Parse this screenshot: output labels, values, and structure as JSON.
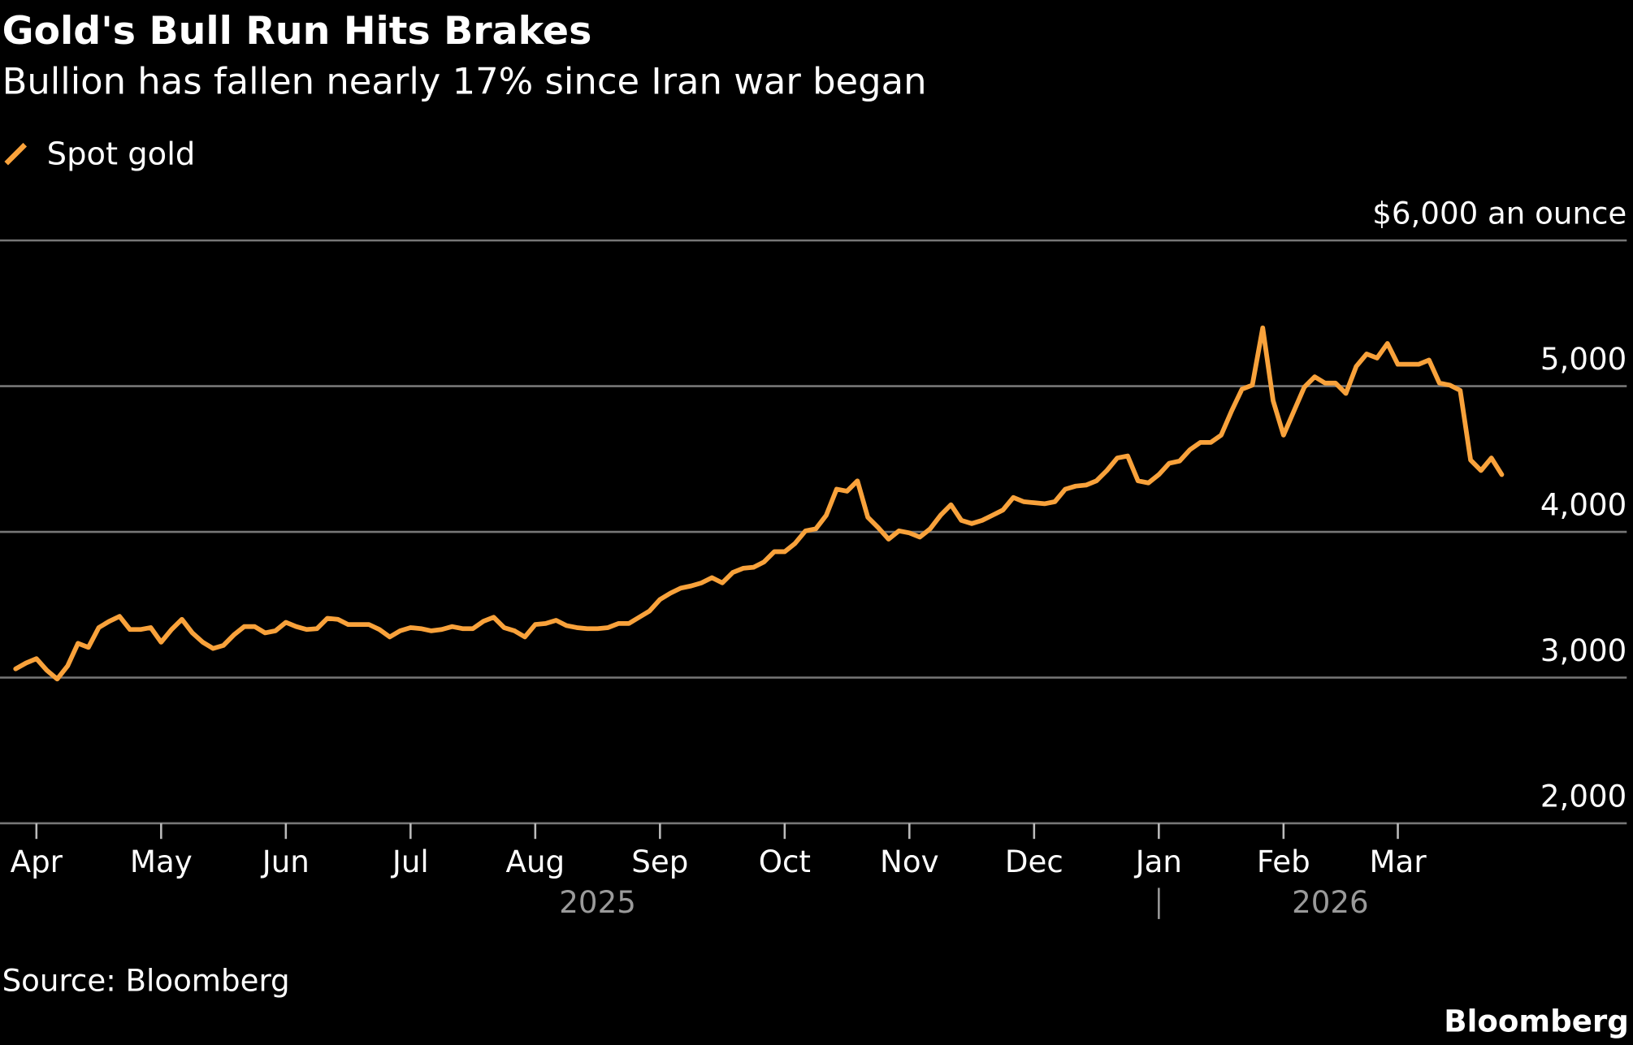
{
  "chart_data": {
    "type": "line",
    "title": "Gold's Bull Run Hits Brakes",
    "subtitle": "Bullion has fallen nearly 17% since Iran war began",
    "source": "Source: Bloomberg",
    "brand": "Bloomberg",
    "categories": [
      null,
      null,
      "Apr",
      null,
      null,
      null,
      null,
      null,
      null,
      null,
      null,
      null,
      null,
      null,
      "May",
      null,
      null,
      null,
      null,
      null,
      null,
      null,
      null,
      null,
      null,
      null,
      "Jun",
      null,
      null,
      null,
      null,
      null,
      null,
      null,
      null,
      null,
      null,
      null,
      "Jul",
      null,
      null,
      null,
      null,
      null,
      null,
      null,
      null,
      null,
      null,
      null,
      "Aug",
      null,
      null,
      null,
      null,
      null,
      null,
      null,
      null,
      null,
      null,
      null,
      "Sep",
      null,
      null,
      null,
      null,
      null,
      null,
      null,
      null,
      null,
      null,
      null,
      "Oct",
      null,
      null,
      null,
      null,
      null,
      null,
      null,
      null,
      null,
      null,
      null,
      "Nov",
      null,
      null,
      null,
      null,
      null,
      null,
      null,
      null,
      null,
      null,
      null,
      "Dec",
      null,
      null,
      null,
      null,
      null,
      null,
      null,
      null,
      null,
      null,
      null,
      "Jan",
      null,
      null,
      null,
      null,
      null,
      null,
      null,
      null,
      null,
      null,
      null,
      "Feb",
      null,
      null,
      null,
      null,
      null,
      null,
      null,
      null,
      null,
      null,
      "Mar",
      null,
      null,
      null,
      null,
      null,
      null,
      null,
      null,
      null,
      null
    ],
    "year_labels": [
      "2025",
      "2026"
    ],
    "series": [
      {
        "name": "Spot gold",
        "color": "#f9a23b",
        "values": [
          3060,
          3100,
          3130,
          3050,
          2990,
          3080,
          3235,
          3207,
          3343,
          3386,
          3420,
          3330,
          3330,
          3343,
          3243,
          3330,
          3400,
          3307,
          3243,
          3200,
          3221,
          3293,
          3350,
          3350,
          3307,
          3321,
          3379,
          3350,
          3330,
          3336,
          3407,
          3400,
          3364,
          3364,
          3364,
          3330,
          3279,
          3321,
          3343,
          3336,
          3321,
          3330,
          3350,
          3336,
          3336,
          3386,
          3414,
          3343,
          3321,
          3279,
          3364,
          3371,
          3393,
          3357,
          3343,
          3336,
          3336,
          3343,
          3371,
          3371,
          3414,
          3457,
          3536,
          3579,
          3614,
          3629,
          3650,
          3686,
          3650,
          3721,
          3750,
          3757,
          3793,
          3864,
          3864,
          3921,
          4007,
          4021,
          4114,
          4293,
          4279,
          4350,
          4100,
          4029,
          3950,
          4007,
          3993,
          3964,
          4021,
          4114,
          4186,
          4079,
          4057,
          4079,
          4114,
          4150,
          4236,
          4207,
          4200,
          4193,
          4207,
          4293,
          4314,
          4321,
          4350,
          4421,
          4507,
          4521,
          4350,
          4336,
          4393,
          4471,
          4486,
          4564,
          4614,
          4614,
          4664,
          4829,
          4979,
          5007,
          5400,
          4900,
          4664,
          4829,
          4993,
          5064,
          5021,
          5021,
          4950,
          5136,
          5221,
          5193,
          5293,
          5150,
          5150,
          5150,
          5179,
          5021,
          5007,
          4971,
          4493,
          4421,
          4507,
          4393
        ]
      }
    ],
    "ylim": [
      2000,
      6000
    ],
    "yticks": [
      {
        "value": 2000,
        "label": "2,000"
      },
      {
        "value": 3000,
        "label": "3,000"
      },
      {
        "value": 4000,
        "label": "4,000"
      },
      {
        "value": 5000,
        "label": "5,000"
      },
      {
        "value": 6000,
        "label": "$6,000 an ounce"
      }
    ],
    "grid": true
  }
}
